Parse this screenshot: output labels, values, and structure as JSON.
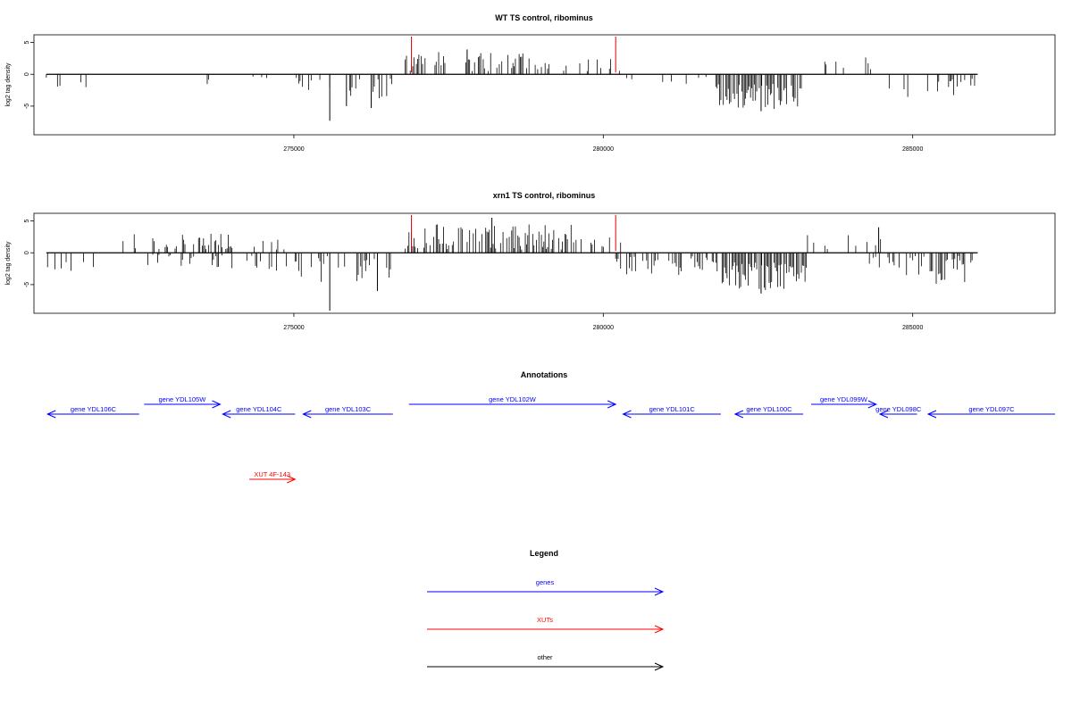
{
  "chart_data": [
    {
      "type": "bar",
      "title": "WT TS control, ribominus",
      "ylabel": "log2 tag density",
      "xlim": [
        270800,
        287300
      ],
      "ylim": [
        -9.5,
        6.2
      ],
      "x_ticks": [
        275000,
        280000,
        285000
      ],
      "x_tick_labels": [
        "275000",
        "280000",
        "285000"
      ],
      "y_ticks": [
        5,
        0,
        -5
      ],
      "y_tick_labels": [
        "5",
        "0",
        "-5"
      ],
      "highlight_positions": [
        276900,
        280200
      ],
      "highlight_color": "#dd0000",
      "bar_color": "#000000",
      "regions": [
        {
          "start": 271000,
          "end": 271800,
          "sign": -1,
          "lo": 0.5,
          "hi": 2.6,
          "density": 0.02
        },
        {
          "start": 272400,
          "end": 273400,
          "sign": 1,
          "lo": 0.6,
          "hi": 2.8,
          "density": 0.02
        },
        {
          "start": 273200,
          "end": 273700,
          "sign": -1,
          "lo": 0.3,
          "hi": 2.4,
          "density": 0.02
        },
        {
          "start": 274100,
          "end": 274500,
          "sign": 1,
          "lo": 0.5,
          "hi": 2.0,
          "density": 0.02
        },
        {
          "start": 274000,
          "end": 274600,
          "sign": -1,
          "lo": 0.3,
          "hi": 1.5,
          "density": 0.02
        },
        {
          "start": 275000,
          "end": 276600,
          "sign": -1,
          "lo": 0.4,
          "hi": 4.0,
          "density": 0.07
        },
        {
          "start": 276800,
          "end": 278800,
          "sign": 1,
          "lo": 0.5,
          "hi": 3.5,
          "density": 0.1
        },
        {
          "start": 278800,
          "end": 279400,
          "sign": 1,
          "lo": 0.5,
          "hi": 2.5,
          "density": 0.08
        },
        {
          "start": 279600,
          "end": 280300,
          "sign": 1,
          "lo": 0.4,
          "hi": 2.8,
          "density": 0.06
        },
        {
          "start": 280300,
          "end": 280500,
          "sign": -1,
          "lo": 0.5,
          "hi": 3.0,
          "density": 0.04
        },
        {
          "start": 280800,
          "end": 281800,
          "sign": -1,
          "lo": 0.2,
          "hi": 1.8,
          "density": 0.025
        },
        {
          "start": 281800,
          "end": 283200,
          "sign": -1,
          "lo": 1.5,
          "hi": 5.5,
          "density": 0.18
        },
        {
          "start": 283300,
          "end": 284500,
          "sign": 1,
          "lo": 0.5,
          "hi": 3.0,
          "density": 0.03
        },
        {
          "start": 284600,
          "end": 286050,
          "sign": -1,
          "lo": 0.5,
          "hi": 3.8,
          "density": 0.06
        }
      ],
      "peak_values": [
        {
          "x": 275580,
          "y": -7.3
        },
        {
          "x": 275850,
          "y": -5.0
        },
        {
          "x": 276250,
          "y": -5.3
        },
        {
          "x": 277800,
          "y": 3.9
        },
        {
          "x": 282550,
          "y": -5.8
        }
      ]
    },
    {
      "type": "bar",
      "title": "xrn1 TS control, ribominus",
      "ylabel": "log2 tag density",
      "xlim": [
        270800,
        287300
      ],
      "ylim": [
        -9.5,
        6.2
      ],
      "x_ticks": [
        275000,
        280000,
        285000
      ],
      "x_tick_labels": [
        "275000",
        "280000",
        "285000"
      ],
      "y_ticks": [
        5,
        0,
        -5
      ],
      "y_tick_labels": [
        "5",
        "0",
        "-5"
      ],
      "highlight_positions": [
        276900,
        280200
      ],
      "highlight_color": "#dd0000",
      "bar_color": "#000000",
      "regions": [
        {
          "start": 271000,
          "end": 272000,
          "sign": -1,
          "lo": 0.5,
          "hi": 3.5,
          "density": 0.05
        },
        {
          "start": 272200,
          "end": 274000,
          "sign": 1,
          "lo": 0.5,
          "hi": 3.2,
          "density": 0.07
        },
        {
          "start": 272600,
          "end": 274400,
          "sign": -1,
          "lo": 0.3,
          "hi": 2.5,
          "density": 0.04
        },
        {
          "start": 274200,
          "end": 275000,
          "sign": 1,
          "lo": 0.5,
          "hi": 3.0,
          "density": 0.05
        },
        {
          "start": 274000,
          "end": 274900,
          "sign": -1,
          "lo": 0.5,
          "hi": 3.0,
          "density": 0.05
        },
        {
          "start": 275000,
          "end": 276600,
          "sign": -1,
          "lo": 0.5,
          "hi": 5.0,
          "density": 0.09
        },
        {
          "start": 276800,
          "end": 279500,
          "sign": 1,
          "lo": 0.5,
          "hi": 4.5,
          "density": 0.14
        },
        {
          "start": 279500,
          "end": 280300,
          "sign": 1,
          "lo": 0.5,
          "hi": 3.0,
          "density": 0.08
        },
        {
          "start": 280200,
          "end": 281800,
          "sign": -1,
          "lo": 0.5,
          "hi": 3.5,
          "density": 0.1
        },
        {
          "start": 281800,
          "end": 283300,
          "sign": -1,
          "lo": 1.5,
          "hi": 6.0,
          "density": 0.2
        },
        {
          "start": 283300,
          "end": 284500,
          "sign": 1,
          "lo": 0.5,
          "hi": 3.0,
          "density": 0.03
        },
        {
          "start": 284300,
          "end": 286050,
          "sign": -1,
          "lo": 0.5,
          "hi": 5.0,
          "density": 0.09
        }
      ],
      "peak_values": [
        {
          "x": 275580,
          "y": -9.1
        },
        {
          "x": 276350,
          "y": -6.0
        },
        {
          "x": 278200,
          "y": 5.5
        },
        {
          "x": 282550,
          "y": -6.4
        },
        {
          "x": 284450,
          "y": 4.0
        }
      ]
    }
  ],
  "annotations": {
    "title": "Annotations",
    "items": [
      {
        "label": "gene YDL106C",
        "start": 271020,
        "end": 272500,
        "strand": "-",
        "row": 1,
        "category": "gene"
      },
      {
        "label": "gene YDL105W",
        "start": 272580,
        "end": 273810,
        "strand": "+",
        "row": 0,
        "category": "gene"
      },
      {
        "label": "gene YDL104C",
        "start": 273850,
        "end": 275020,
        "strand": "-",
        "row": 1,
        "category": "gene"
      },
      {
        "label": "gene YDL103C",
        "start": 275150,
        "end": 276600,
        "strand": "-",
        "row": 1,
        "category": "gene"
      },
      {
        "label": "gene YDL102W",
        "start": 276860,
        "end": 280200,
        "strand": "+",
        "row": 0,
        "category": "gene"
      },
      {
        "label": "gene YDL101C",
        "start": 280320,
        "end": 281900,
        "strand": "-",
        "row": 1,
        "category": "gene"
      },
      {
        "label": "gene YDL100C",
        "start": 282130,
        "end": 283230,
        "strand": "-",
        "row": 1,
        "category": "gene"
      },
      {
        "label": "gene YDL099W",
        "start": 283360,
        "end": 284410,
        "strand": "+",
        "row": 0,
        "category": "gene"
      },
      {
        "label": "gene YDL098C",
        "start": 284470,
        "end": 285070,
        "strand": "-",
        "row": 1,
        "category": "gene"
      },
      {
        "label": "gene YDL097C",
        "start": 285250,
        "end": 287300,
        "strand": "-",
        "row": 1,
        "category": "gene"
      },
      {
        "label": "XUT 4F-143",
        "start": 274280,
        "end": 275020,
        "strand": "+",
        "row": 2,
        "category": "xut"
      }
    ]
  },
  "legend": {
    "title": "Legend",
    "entries": [
      {
        "label": "genes",
        "color": "#0000ff"
      },
      {
        "label": "XUTs",
        "color": "#ff0000"
      },
      {
        "label": "other",
        "color": "#000000"
      }
    ]
  },
  "colors": {
    "gene": "#0000ff",
    "xut": "#ff0000",
    "other": "#000000"
  }
}
